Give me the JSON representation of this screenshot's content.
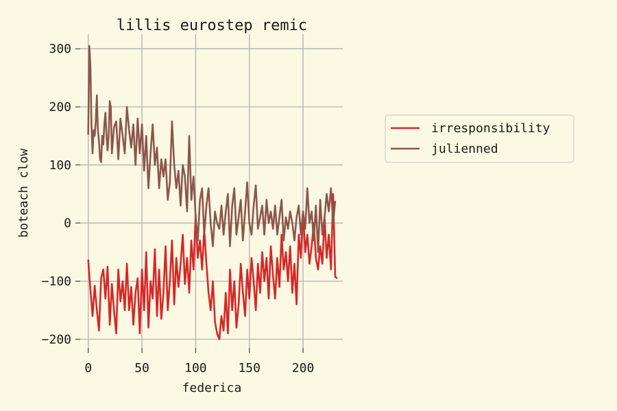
{
  "chart_data": {
    "type": "line",
    "title": "lillis eurostep remic",
    "xlabel": "federica",
    "ylabel": "boteach clow",
    "xlim": [
      -7.5,
      237
    ],
    "ylim": [
      -215,
      325
    ],
    "x_ticks": [
      0,
      50,
      100,
      150,
      200
    ],
    "y_ticks": [
      -200,
      -100,
      0,
      100,
      200,
      300
    ],
    "grid": true,
    "legend_position": "right",
    "background": "#fbf9e3",
    "grid_color": "#b0b0b0",
    "series": [
      {
        "name": "irresponsibility",
        "color": "#d62728",
        "points": [
          [
            0,
            -63
          ],
          [
            2,
            -115
          ],
          [
            4,
            -160
          ],
          [
            6,
            -108
          ],
          [
            8,
            -150
          ],
          [
            10,
            -185
          ],
          [
            12,
            -95
          ],
          [
            14,
            -80
          ],
          [
            16,
            -130
          ],
          [
            18,
            -75
          ],
          [
            20,
            -175
          ],
          [
            22,
            -105
          ],
          [
            24,
            -150
          ],
          [
            26,
            -190
          ],
          [
            28,
            -80
          ],
          [
            30,
            -135
          ],
          [
            32,
            -100
          ],
          [
            34,
            -150
          ],
          [
            36,
            -70
          ],
          [
            38,
            -150
          ],
          [
            40,
            -110
          ],
          [
            42,
            -175
          ],
          [
            44,
            -120
          ],
          [
            46,
            -95
          ],
          [
            48,
            -190
          ],
          [
            50,
            -80
          ],
          [
            52,
            -150
          ],
          [
            54,
            -50
          ],
          [
            56,
            -180
          ],
          [
            58,
            -100
          ],
          [
            60,
            -130
          ],
          [
            62,
            -45
          ],
          [
            64,
            -160
          ],
          [
            66,
            -80
          ],
          [
            68,
            -165
          ],
          [
            70,
            -120
          ],
          [
            72,
            -40
          ],
          [
            74,
            -150
          ],
          [
            76,
            -100
          ],
          [
            78,
            -30
          ],
          [
            80,
            -140
          ],
          [
            82,
            -60
          ],
          [
            84,
            -110
          ],
          [
            86,
            -70
          ],
          [
            88,
            -20
          ],
          [
            90,
            -105
          ],
          [
            92,
            -60
          ],
          [
            94,
            -120
          ],
          [
            96,
            -30
          ],
          [
            98,
            -80
          ],
          [
            100,
            15
          ],
          [
            102,
            -60
          ],
          [
            104,
            -30
          ],
          [
            106,
            -80
          ],
          [
            108,
            -10
          ],
          [
            110,
            -70
          ],
          [
            112,
            -120
          ],
          [
            114,
            -150
          ],
          [
            116,
            -100
          ],
          [
            118,
            -170
          ],
          [
            120,
            -190
          ],
          [
            122,
            -200
          ],
          [
            124,
            -160
          ],
          [
            126,
            -185
          ],
          [
            128,
            -120
          ],
          [
            130,
            -190
          ],
          [
            132,
            -80
          ],
          [
            134,
            -150
          ],
          [
            136,
            -100
          ],
          [
            138,
            -180
          ],
          [
            140,
            -140
          ],
          [
            142,
            -70
          ],
          [
            144,
            -120
          ],
          [
            146,
            -160
          ],
          [
            148,
            -80
          ],
          [
            150,
            -130
          ],
          [
            152,
            -60
          ],
          [
            154,
            -100
          ],
          [
            156,
            -150
          ],
          [
            158,
            -70
          ],
          [
            160,
            -120
          ],
          [
            162,
            -50
          ],
          [
            164,
            -100
          ],
          [
            166,
            -60
          ],
          [
            168,
            -130
          ],
          [
            170,
            -40
          ],
          [
            172,
            -90
          ],
          [
            174,
            -130
          ],
          [
            176,
            -60
          ],
          [
            178,
            -110
          ],
          [
            180,
            -20
          ],
          [
            182,
            -80
          ],
          [
            184,
            -50
          ],
          [
            186,
            -100
          ],
          [
            188,
            -40
          ],
          [
            190,
            -120
          ],
          [
            192,
            -70
          ],
          [
            194,
            -140
          ],
          [
            196,
            -20
          ],
          [
            198,
            -60
          ],
          [
            200,
            20
          ],
          [
            202,
            -50
          ],
          [
            204,
            -20
          ],
          [
            206,
            -70
          ],
          [
            208,
            -40
          ],
          [
            210,
            0
          ],
          [
            212,
            -60
          ],
          [
            214,
            -80
          ],
          [
            216,
            -40
          ],
          [
            218,
            -70
          ],
          [
            220,
            10
          ],
          [
            222,
            -60
          ],
          [
            224,
            -20
          ],
          [
            226,
            -80
          ],
          [
            228,
            50
          ],
          [
            230,
            -93
          ],
          [
            232,
            -95
          ]
        ]
      },
      {
        "name": "julienned",
        "color": "#8c564b",
        "points": [
          [
            0,
            152
          ],
          [
            1,
            305
          ],
          [
            2,
            270
          ],
          [
            3,
            170
          ],
          [
            4,
            120
          ],
          [
            5,
            160
          ],
          [
            6,
            150
          ],
          [
            7,
            175
          ],
          [
            8,
            220
          ],
          [
            9,
            160
          ],
          [
            10,
            140
          ],
          [
            11,
            110
          ],
          [
            12,
            105
          ],
          [
            13,
            150
          ],
          [
            14,
            135
          ],
          [
            15,
            170
          ],
          [
            16,
            190
          ],
          [
            17,
            150
          ],
          [
            18,
            125
          ],
          [
            19,
            150
          ],
          [
            20,
            210
          ],
          [
            21,
            200
          ],
          [
            22,
            120
          ],
          [
            24,
            165
          ],
          [
            26,
            175
          ],
          [
            28,
            110
          ],
          [
            30,
            180
          ],
          [
            32,
            150
          ],
          [
            34,
            120
          ],
          [
            36,
            200
          ],
          [
            38,
            160
          ],
          [
            40,
            130
          ],
          [
            42,
            170
          ],
          [
            44,
            100
          ],
          [
            46,
            180
          ],
          [
            48,
            120
          ],
          [
            50,
            170
          ],
          [
            52,
            90
          ],
          [
            54,
            150
          ],
          [
            56,
            60
          ],
          [
            58,
            120
          ],
          [
            60,
            170
          ],
          [
            62,
            100
          ],
          [
            64,
            130
          ],
          [
            66,
            60
          ],
          [
            68,
            110
          ],
          [
            70,
            80
          ],
          [
            72,
            110
          ],
          [
            74,
            40
          ],
          [
            76,
            70
          ],
          [
            78,
            175
          ],
          [
            80,
            100
          ],
          [
            82,
            60
          ],
          [
            84,
            90
          ],
          [
            86,
            30
          ],
          [
            88,
            100
          ],
          [
            90,
            80
          ],
          [
            92,
            20
          ],
          [
            94,
            150
          ],
          [
            96,
            40
          ],
          [
            98,
            80
          ],
          [
            100,
            10
          ],
          [
            102,
            -30
          ],
          [
            104,
            40
          ],
          [
            106,
            60
          ],
          [
            108,
            -20
          ],
          [
            110,
            30
          ],
          [
            112,
            60
          ],
          [
            114,
            0
          ],
          [
            116,
            -40
          ],
          [
            118,
            20
          ],
          [
            120,
            0
          ],
          [
            122,
            -10
          ],
          [
            124,
            30
          ],
          [
            126,
            -20
          ],
          [
            128,
            20
          ],
          [
            130,
            50
          ],
          [
            132,
            -40
          ],
          [
            134,
            30
          ],
          [
            136,
            60
          ],
          [
            138,
            -20
          ],
          [
            140,
            10
          ],
          [
            142,
            40
          ],
          [
            144,
            -30
          ],
          [
            146,
            20
          ],
          [
            148,
            70
          ],
          [
            150,
            0
          ],
          [
            152,
            -20
          ],
          [
            154,
            30
          ],
          [
            156,
            65
          ],
          [
            158,
            -10
          ],
          [
            160,
            10
          ],
          [
            162,
            30
          ],
          [
            164,
            -20
          ],
          [
            166,
            40
          ],
          [
            168,
            0
          ],
          [
            170,
            20
          ],
          [
            172,
            -10
          ],
          [
            174,
            30
          ],
          [
            176,
            -20
          ],
          [
            178,
            10
          ],
          [
            180,
            40
          ],
          [
            182,
            -30
          ],
          [
            184,
            10
          ],
          [
            186,
            -10
          ],
          [
            188,
            20
          ],
          [
            190,
            0
          ],
          [
            192,
            -30
          ],
          [
            194,
            10
          ],
          [
            196,
            30
          ],
          [
            198,
            -20
          ],
          [
            200,
            20
          ],
          [
            202,
            -10
          ],
          [
            204,
            60
          ],
          [
            206,
            0
          ],
          [
            208,
            20
          ],
          [
            210,
            -30
          ],
          [
            212,
            30
          ],
          [
            214,
            -50
          ],
          [
            216,
            40
          ],
          [
            218,
            -20
          ],
          [
            220,
            10
          ],
          [
            222,
            50
          ],
          [
            224,
            20
          ],
          [
            226,
            60
          ],
          [
            228,
            0
          ],
          [
            230,
            38
          ]
        ]
      }
    ]
  }
}
